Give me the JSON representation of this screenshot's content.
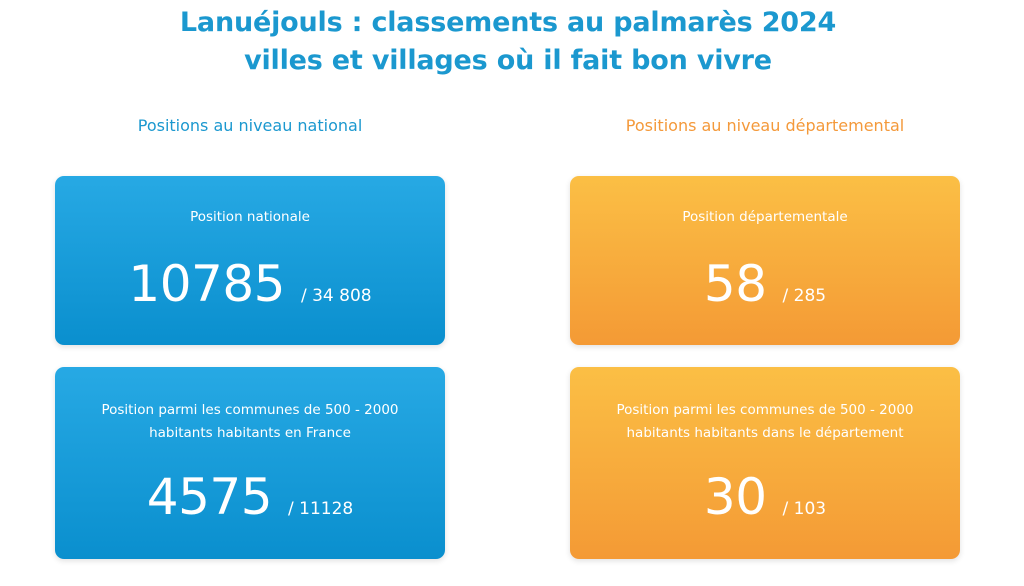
{
  "header": {
    "title_line1": "Lanuéjouls : classements au palmarès 2024",
    "title_line2": "villes et villages où il fait bon vivre"
  },
  "national": {
    "heading": "Positions au niveau national",
    "position": {
      "label": "Position nationale",
      "rank": "10785",
      "total": "/ 34 808"
    },
    "size_class": {
      "label": "Position parmi les communes de 500 - 2000 habitants habitants en France",
      "rank": "4575",
      "total": "/ 11128"
    }
  },
  "departemental": {
    "heading": "Positions au niveau départemental",
    "position": {
      "label": "Position départementale",
      "rank": "58",
      "total": "/ 285"
    },
    "size_class": {
      "label": "Position parmi les communes de 500 - 2000 habitants habitants dans le département",
      "rank": "30",
      "total": "/ 103"
    }
  },
  "colors": {
    "blue": "#1b98cf",
    "orange": "#f4993a"
  }
}
